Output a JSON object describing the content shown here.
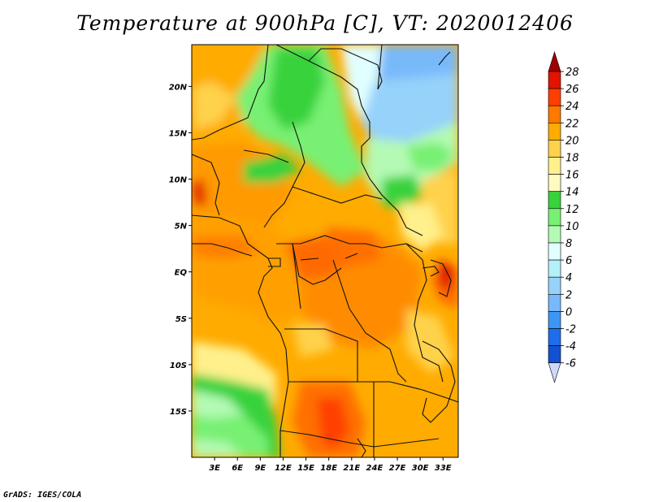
{
  "title": "Temperature at 900hPa [C], VT: 2020012406",
  "credit": "GrADS: IGES/COLA",
  "map": {
    "lat_range": [
      -20,
      24.5
    ],
    "lon_range": [
      0,
      35
    ],
    "lat_ticks": [
      {
        "value": 20,
        "label": "20N"
      },
      {
        "value": 15,
        "label": "15N"
      },
      {
        "value": 10,
        "label": "10N"
      },
      {
        "value": 5,
        "label": "5N"
      },
      {
        "value": 0,
        "label": "EQ"
      },
      {
        "value": -5,
        "label": "5S"
      },
      {
        "value": -10,
        "label": "10S"
      },
      {
        "value": -15,
        "label": "15S"
      }
    ],
    "lon_ticks": [
      {
        "value": 3,
        "label": "3E"
      },
      {
        "value": 6,
        "label": "6E"
      },
      {
        "value": 9,
        "label": "9E"
      },
      {
        "value": 12,
        "label": "12E"
      },
      {
        "value": 15,
        "label": "15E"
      },
      {
        "value": 18,
        "label": "18E"
      },
      {
        "value": 21,
        "label": "21E"
      },
      {
        "value": 24,
        "label": "24E"
      },
      {
        "value": 27,
        "label": "27E"
      },
      {
        "value": 30,
        "label": "30E"
      },
      {
        "value": 33,
        "label": "33E"
      }
    ]
  },
  "colorbar": {
    "levels": [
      "28",
      "26",
      "24",
      "22",
      "20",
      "18",
      "16",
      "14",
      "12",
      "10",
      "8",
      "6",
      "4",
      "2",
      "0",
      "-2",
      "-4",
      "-6"
    ],
    "colors": [
      "#a00000",
      "#e11400",
      "#ff3f00",
      "#ff7800",
      "#ffab00",
      "#ffd24b",
      "#fff08c",
      "#fffac0",
      "#37d23c",
      "#78f073",
      "#b4fab4",
      "#e1ffff",
      "#b4f0fa",
      "#96d2fa",
      "#78b9fa",
      "#3c96f5",
      "#1e6eeb",
      "#1450d2",
      "#000096",
      "#d0d8f8"
    ]
  }
}
